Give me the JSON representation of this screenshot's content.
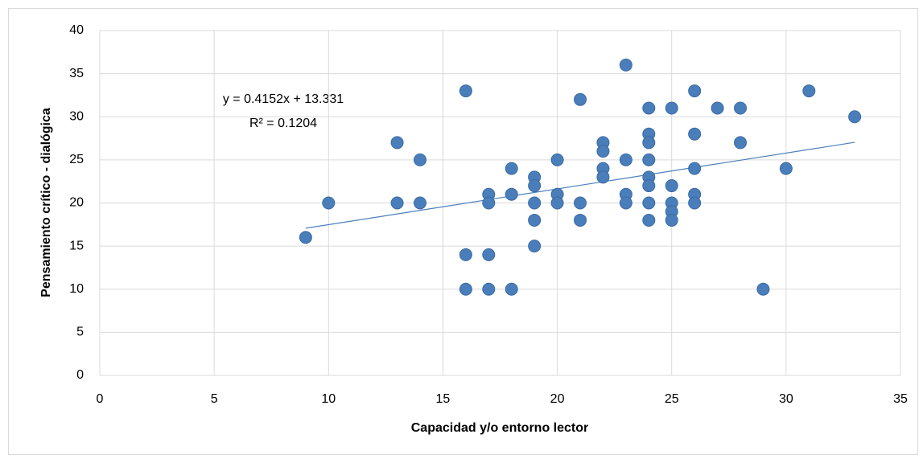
{
  "chart_data": {
    "type": "scatter",
    "x_label": "Capacidad y/o entorno lector",
    "y_label": "Pensamiento crítico - dialógica",
    "x": [
      9,
      10,
      13,
      13,
      14,
      14,
      16,
      16,
      16,
      17,
      17,
      17,
      17,
      18,
      18,
      18,
      19,
      19,
      19,
      19,
      19,
      20,
      20,
      20,
      21,
      21,
      21,
      22,
      22,
      22,
      22,
      23,
      23,
      23,
      23,
      24,
      24,
      24,
      24,
      24,
      24,
      24,
      24,
      25,
      25,
      25,
      25,
      25,
      26,
      26,
      26,
      26,
      26,
      27,
      28,
      28,
      29,
      30,
      31,
      33
    ],
    "values": [
      16,
      20,
      27,
      20,
      25,
      20,
      33,
      14,
      10,
      21,
      20,
      14,
      10,
      24,
      21,
      10,
      23,
      22,
      20,
      18,
      15,
      25,
      21,
      20,
      32,
      20,
      18,
      27,
      26,
      24,
      23,
      36,
      25,
      21,
      20,
      31,
      28,
      27,
      25,
      23,
      22,
      20,
      18,
      31,
      22,
      20,
      19,
      18,
      33,
      28,
      24,
      21,
      20,
      31,
      31,
      27,
      10,
      24,
      33,
      30
    ],
    "color": "#4a7ebb",
    "xlim": [
      0,
      35
    ],
    "xticks": [
      0,
      5,
      10,
      15,
      20,
      25,
      30,
      35
    ],
    "ylim": [
      0,
      40
    ],
    "yticks": [
      0,
      5,
      10,
      15,
      20,
      25,
      30,
      35,
      40
    ],
    "grid": true,
    "trendline": {
      "slope": 0.4152,
      "intercept": 13.331,
      "color": "#4a7ebb"
    },
    "annotations": [
      "y = 0.4152x + 13.331",
      "R² = 0.1204"
    ]
  }
}
